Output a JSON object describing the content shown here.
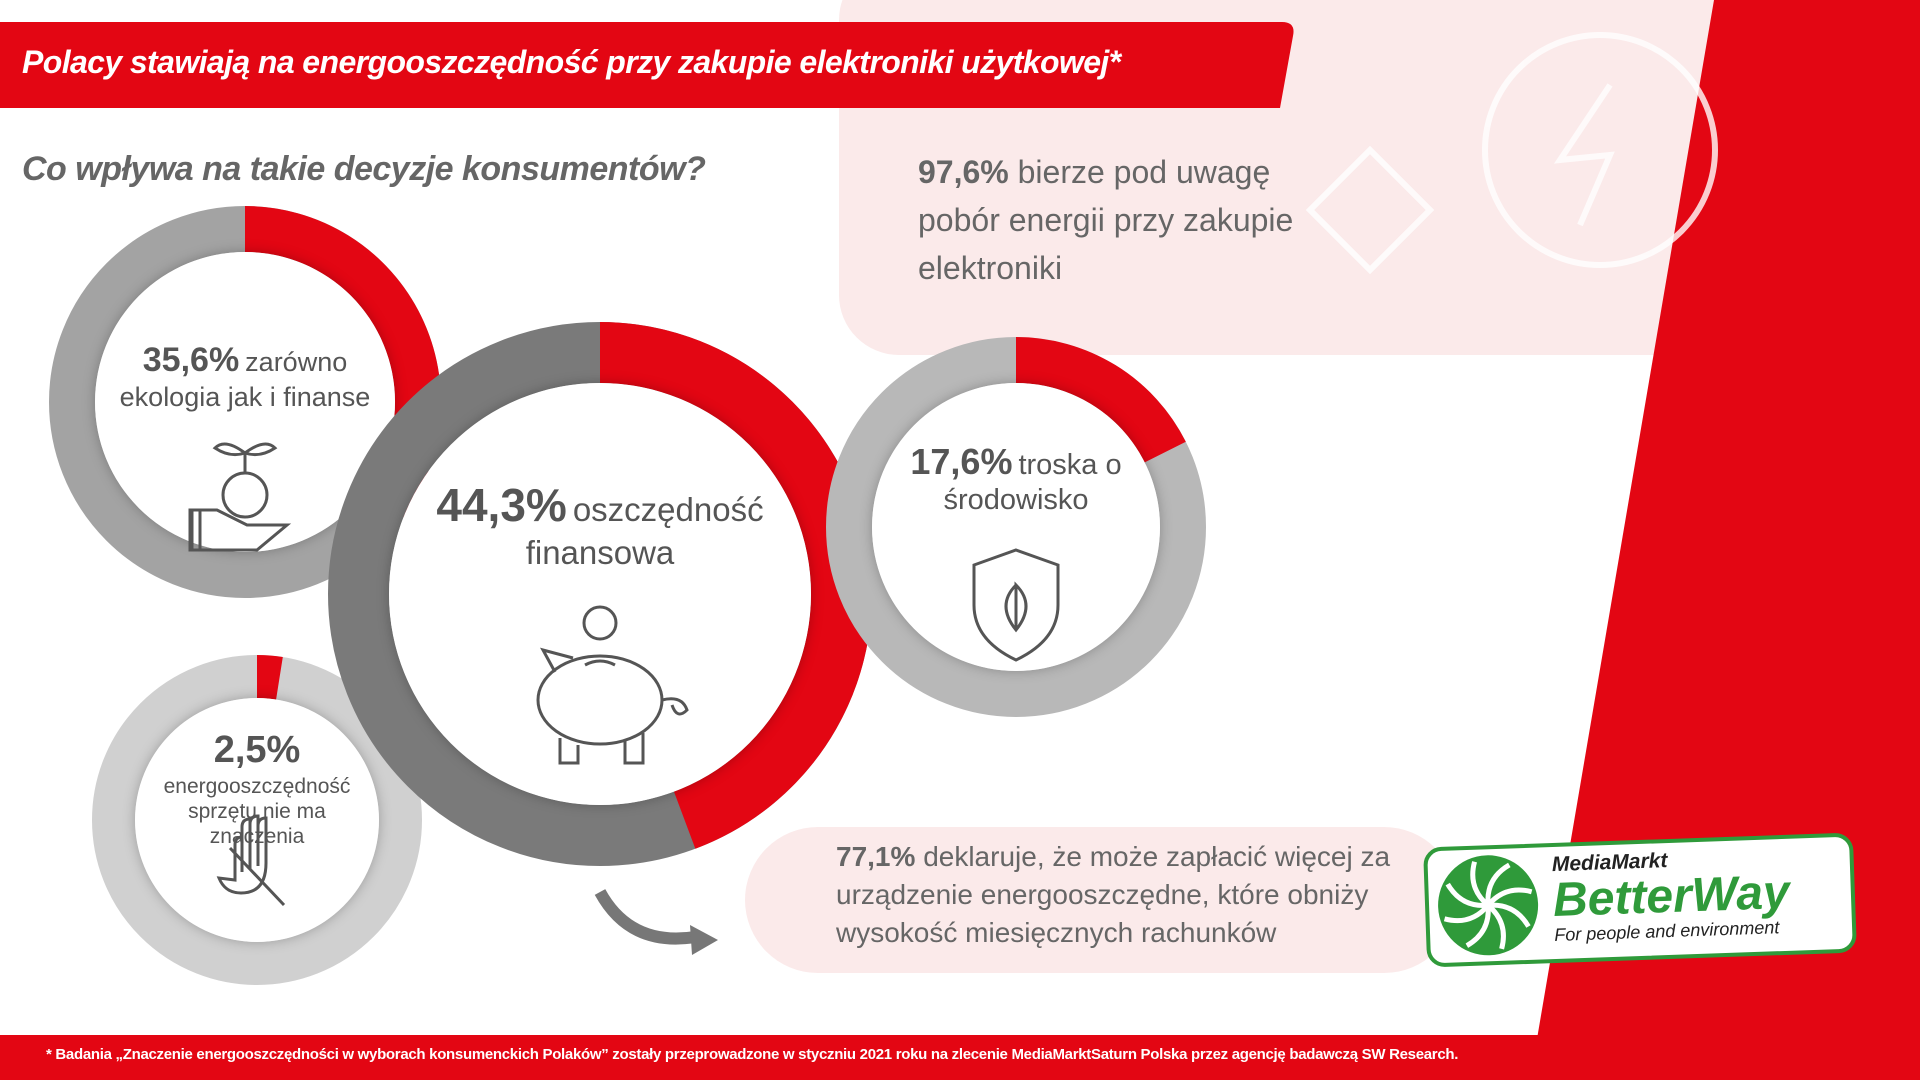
{
  "header": {
    "title": "Polacy stawiają na energooszczędność przy zakupie elektroniki użytkowej*",
    "subtitle": "Co wpływa na takie decyzje konsumentów?"
  },
  "chart_data": [
    {
      "type": "donut",
      "values": [
        35.6
      ],
      "value_labels": [
        "35,6%"
      ],
      "label": "zarówno ekologia jak i finanse",
      "color": "#e30613"
    },
    {
      "type": "donut",
      "values": [
        44.3
      ],
      "value_labels": [
        "44,3%"
      ],
      "label": "oszczędność finansowa",
      "color": "#e30613"
    },
    {
      "type": "donut",
      "values": [
        17.6
      ],
      "value_labels": [
        "17,6%"
      ],
      "label": "troska o środowisko",
      "color": "#e30613"
    },
    {
      "type": "donut",
      "values": [
        2.5
      ],
      "value_labels": [
        "2,5%"
      ],
      "label": "energooszczędność sprzętu nie ma znaczenia",
      "color": "#e30613"
    }
  ],
  "statements": [
    {
      "value": "97,6%",
      "text": "bierze pod uwagę pobór energii przy zakupie elektroniki"
    },
    {
      "value": "77,1%",
      "text": "deklaruje, że może zapłacić więcej za urządzenie energooszczędne, które obniży wysokość miesięcznych rachunków"
    }
  ],
  "logo": {
    "brand": "MediaMarkt",
    "name": "BetterWay",
    "tagline": "For people and environment"
  },
  "footnote": "* Badania „Znaczenie energooszczędności w wyborach konsumenckich Polaków” zostały przeprowadzone w styczniu 2021 roku na zlecenie MediaMarktSaturn Polska przez agencję badawczą SW Research."
}
